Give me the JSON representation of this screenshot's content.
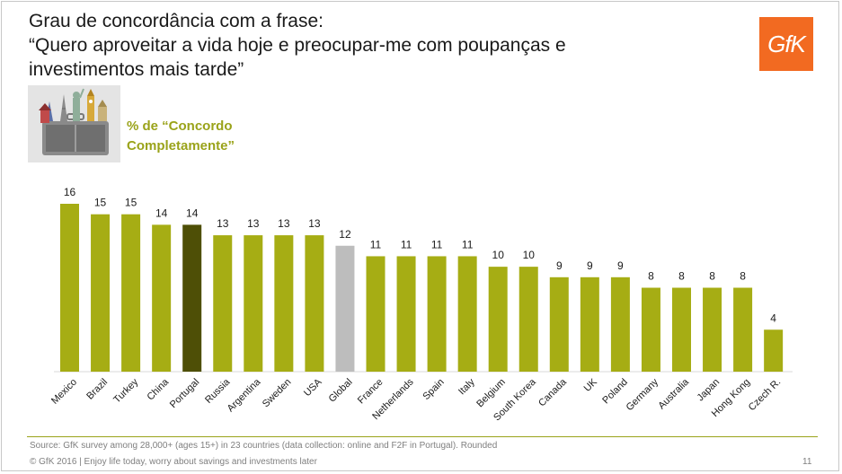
{
  "header": {
    "title_line1": "Grau de concordância com a frase:",
    "title_line2": "“Quero aproveitar a vida hoje e preocupar-me com poupanças e",
    "title_line3": "investimentos mais tarde”"
  },
  "logo": {
    "text_main": "Gf",
    "text_end": "K"
  },
  "legend": {
    "line1": "% de “Concordo",
    "line2": "Completamente”"
  },
  "colors": {
    "bar": "#a6ad14",
    "highlight": "#4e4f06",
    "global": "#bdbdbd",
    "logo": "#f26a21"
  },
  "chart_data": {
    "type": "bar",
    "title": "% de “Concordo Completamente”",
    "xlabel": "",
    "ylabel": "",
    "ylim": [
      0,
      16
    ],
    "categories": [
      "Mexico",
      "Brazil",
      "Turkey",
      "China",
      "Portugal",
      "Russia",
      "Argentina",
      "Sweden",
      "USA",
      "Global",
      "France",
      "Netherlands",
      "Spain",
      "Italy",
      "Belgium",
      "South Korea",
      "Canada",
      "UK",
      "Poland",
      "Germany",
      "Australia",
      "Japan",
      "Hong Kong",
      "Czech R."
    ],
    "values": [
      16,
      15,
      15,
      14,
      14,
      13,
      13,
      13,
      13,
      12,
      11,
      11,
      11,
      11,
      10,
      10,
      9,
      9,
      9,
      8,
      8,
      8,
      8,
      4
    ],
    "highlight": [
      "Portugal"
    ],
    "reference": [
      "Global"
    ],
    "data_labels": true,
    "grid": false
  },
  "footer": {
    "source": "Source: GfK survey among 28,000+ (ages 15+) in 23 countries (data collection: online and F2F in Portugal). Rounded",
    "copyright": "© GfK 2016 | Enjoy life today, worry about savings and investments later",
    "page_number": "11"
  }
}
